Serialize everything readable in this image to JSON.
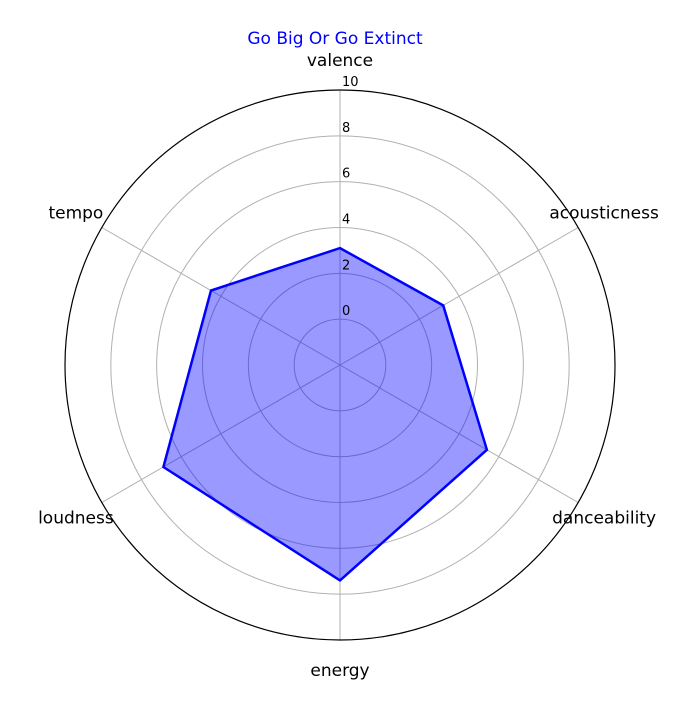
{
  "chart_data": {
    "type": "radar",
    "title": "Go Big Or Go Extinct",
    "categories": [
      "valence",
      "acousticness",
      "danceability",
      "energy",
      "loudness",
      "tempo"
    ],
    "series": [
      {
        "values": [
          3.1,
          3.2,
          5.4,
          7.4,
          6.9,
          4.5
        ]
      }
    ],
    "r_ticks": [
      "0",
      "2",
      "4",
      "6",
      "8",
      "10"
    ],
    "r_tick_values": [
      0,
      2,
      4,
      6,
      8,
      10
    ],
    "rlim": [
      -2,
      10
    ],
    "grid": true,
    "colors": {
      "title": "#0000ff",
      "series_line": "#0000ff",
      "series_fill": "#0000ff",
      "grid": "#b0b0b0",
      "frame": "#000000"
    }
  }
}
